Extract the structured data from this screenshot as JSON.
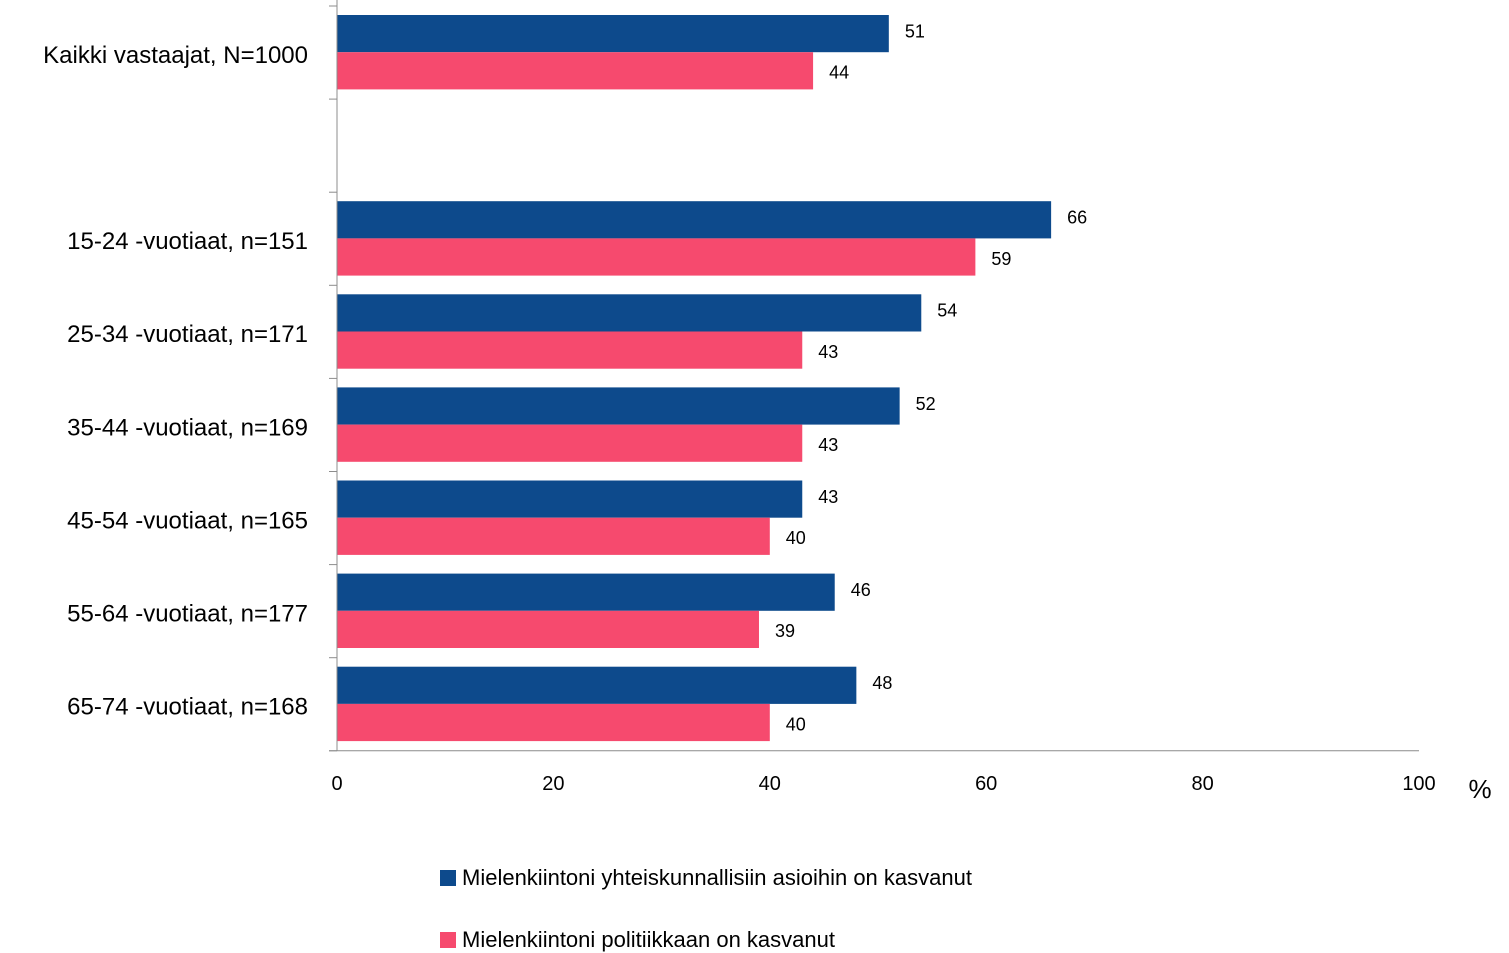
{
  "chart_data": {
    "type": "bar",
    "orientation": "horizontal",
    "categories": [
      "Kaikki vastaajat, N=1000",
      "",
      "15-24 -vuotiaat, n=151",
      "25-34 -vuotiaat, n=171",
      "35-44 -vuotiaat, n=169",
      "45-54 -vuotiaat, n=165",
      "55-64 -vuotiaat, n=177",
      "65-74 -vuotiaat, n=168"
    ],
    "series": [
      {
        "name": "Mielenkiintoni yhteiskunnallisiin asioihin on kasvanut",
        "color": "#0d4a8c",
        "values": [
          51,
          null,
          66,
          54,
          52,
          43,
          46,
          48
        ]
      },
      {
        "name": "Mielenkiintoni politiikkaan on kasvanut",
        "color": "#f64a6e",
        "values": [
          44,
          null,
          59,
          43,
          43,
          40,
          39,
          40
        ]
      }
    ],
    "x_ticks": [
      "0",
      "20",
      "40",
      "60",
      "80",
      "100"
    ],
    "xlim": [
      0,
      100
    ],
    "x_unit": "%",
    "grid": false,
    "legend_position": "bottom"
  }
}
